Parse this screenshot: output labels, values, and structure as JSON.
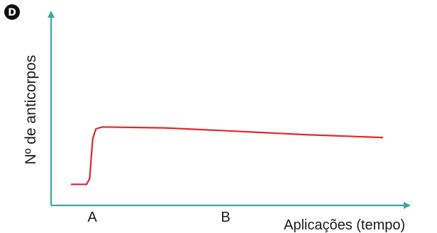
{
  "panel_label": "D",
  "colors": {
    "axis": "#3aa6a8",
    "curve": "#e0262b",
    "badge": "#111111",
    "text": "#1a1a1a"
  },
  "chart_data": {
    "type": "line",
    "xlabel": "Aplicações (tempo)",
    "ylabel": "Nº de anticorpos",
    "x_ticks": [
      "A",
      "B"
    ],
    "series": [
      {
        "points": [
          {
            "x": 0.0,
            "y": 0.11
          },
          {
            "x": 0.05,
            "y": 0.11
          },
          {
            "x": 0.06,
            "y": 0.14
          },
          {
            "x": 0.065,
            "y": 0.25
          },
          {
            "x": 0.07,
            "y": 0.35
          },
          {
            "x": 0.08,
            "y": 0.4
          },
          {
            "x": 0.1,
            "y": 0.41
          },
          {
            "x": 0.3,
            "y": 0.405
          },
          {
            "x": 0.5,
            "y": 0.39
          },
          {
            "x": 0.75,
            "y": 0.37
          },
          {
            "x": 1.0,
            "y": 0.355
          }
        ]
      }
    ],
    "grid": false,
    "legend": "none"
  }
}
